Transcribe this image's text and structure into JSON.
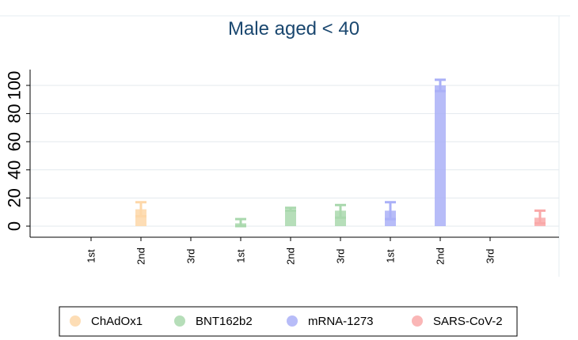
{
  "chart_data": {
    "type": "bar",
    "title": "Male aged < 40",
    "xlabel": "",
    "ylabel": "",
    "ylim": [
      0,
      100
    ],
    "yticks": [
      0,
      20,
      40,
      60,
      80,
      100
    ],
    "grid": true,
    "legend_position": "bottom",
    "bars": [
      {
        "series": "ChAdOx1",
        "label": "1st",
        "value": 0,
        "err_low": 0,
        "err_high": 0
      },
      {
        "series": "ChAdOx1",
        "label": "2nd",
        "value": 12,
        "err_low": 7,
        "err_high": 17
      },
      {
        "series": "ChAdOx1",
        "label": "3rd",
        "value": 0,
        "err_low": 0,
        "err_high": 0
      },
      {
        "series": "BNT162b2",
        "label": "1st",
        "value": 2,
        "err_low": 0,
        "err_high": 5
      },
      {
        "series": "BNT162b2",
        "label": "2nd",
        "value": 12,
        "err_low": 11,
        "err_high": 13
      },
      {
        "series": "BNT162b2",
        "label": "3rd",
        "value": 11,
        "err_low": 6,
        "err_high": 15
      },
      {
        "series": "mRNA-1273",
        "label": "1st",
        "value": 11,
        "err_low": 5,
        "err_high": 17
      },
      {
        "series": "mRNA-1273",
        "label": "2nd",
        "value": 100,
        "err_low": 96,
        "err_high": 104
      },
      {
        "series": "mRNA-1273",
        "label": "3rd",
        "value": 0,
        "err_low": 0,
        "err_high": 0
      },
      {
        "series": "SARS-CoV-2",
        "label": "",
        "value": 6,
        "err_low": 2,
        "err_high": 11
      }
    ],
    "series": [
      {
        "name": "ChAdOx1",
        "color": "#fdd7a8"
      },
      {
        "name": "BNT162b2",
        "color": "#a9d8ad"
      },
      {
        "name": "mRNA-1273",
        "color": "#aab0f7"
      },
      {
        "name": "SARS-CoV-2",
        "color": "#f9a9a9"
      }
    ]
  }
}
